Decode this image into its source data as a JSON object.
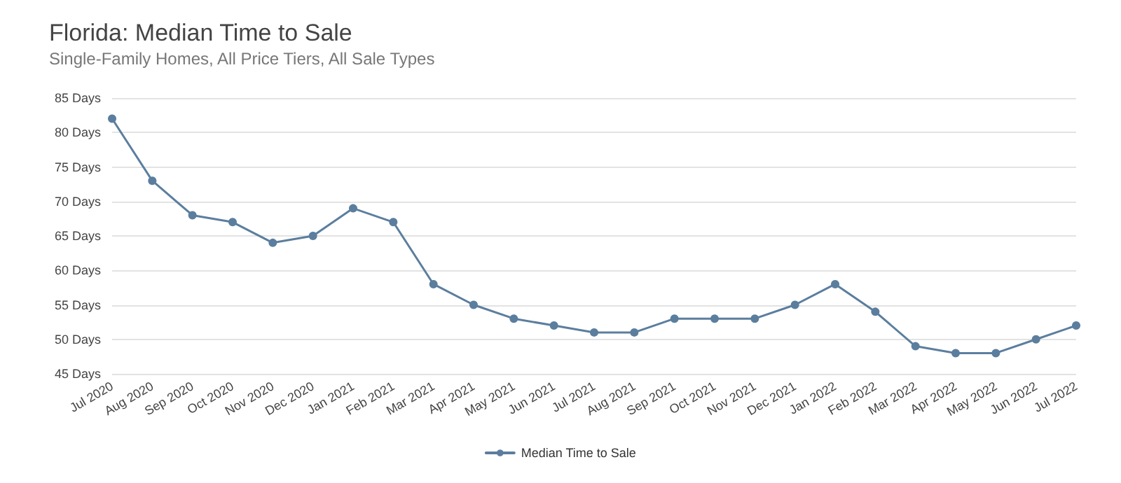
{
  "chart_data": {
    "type": "line",
    "title": "Florida: Median Time to Sale",
    "subtitle": "Single-Family Homes, All Price Tiers, All Sale Types",
    "categories": [
      "Jul 2020",
      "Aug 2020",
      "Sep 2020",
      "Oct 2020",
      "Nov 2020",
      "Dec 2020",
      "Jan 2021",
      "Feb 2021",
      "Mar 2021",
      "Apr 2021",
      "May 2021",
      "Jun 2021",
      "Jul 2021",
      "Aug 2021",
      "Sep 2021",
      "Oct 2021",
      "Nov 2021",
      "Dec 2021",
      "Jan 2022",
      "Feb 2022",
      "Mar 2022",
      "Apr 2022",
      "May 2022",
      "Jun 2022",
      "Jul 2022"
    ],
    "series": [
      {
        "name": "Median Time to Sale",
        "color": "#5b7e9e",
        "values": [
          82,
          73,
          68,
          67,
          64,
          65,
          69,
          67,
          58,
          55,
          53,
          52,
          51,
          51,
          53,
          53,
          53,
          55,
          58,
          54,
          49,
          48,
          48,
          50,
          52
        ]
      }
    ],
    "ylim": [
      45,
      85
    ],
    "yticks": [
      {
        "value": 45,
        "label": "45 Days"
      },
      {
        "value": 50,
        "label": "50 Days"
      },
      {
        "value": 55,
        "label": "55 Days"
      },
      {
        "value": 60,
        "label": "60 Days"
      },
      {
        "value": 65,
        "label": "65 Days"
      },
      {
        "value": 70,
        "label": "70 Days"
      },
      {
        "value": 75,
        "label": "75 Days"
      },
      {
        "value": 80,
        "label": "80 Days"
      },
      {
        "value": 85,
        "label": "85 Days"
      }
    ],
    "grid": "y",
    "legend": "bottom",
    "marker": "circle",
    "line_style": "solid"
  }
}
